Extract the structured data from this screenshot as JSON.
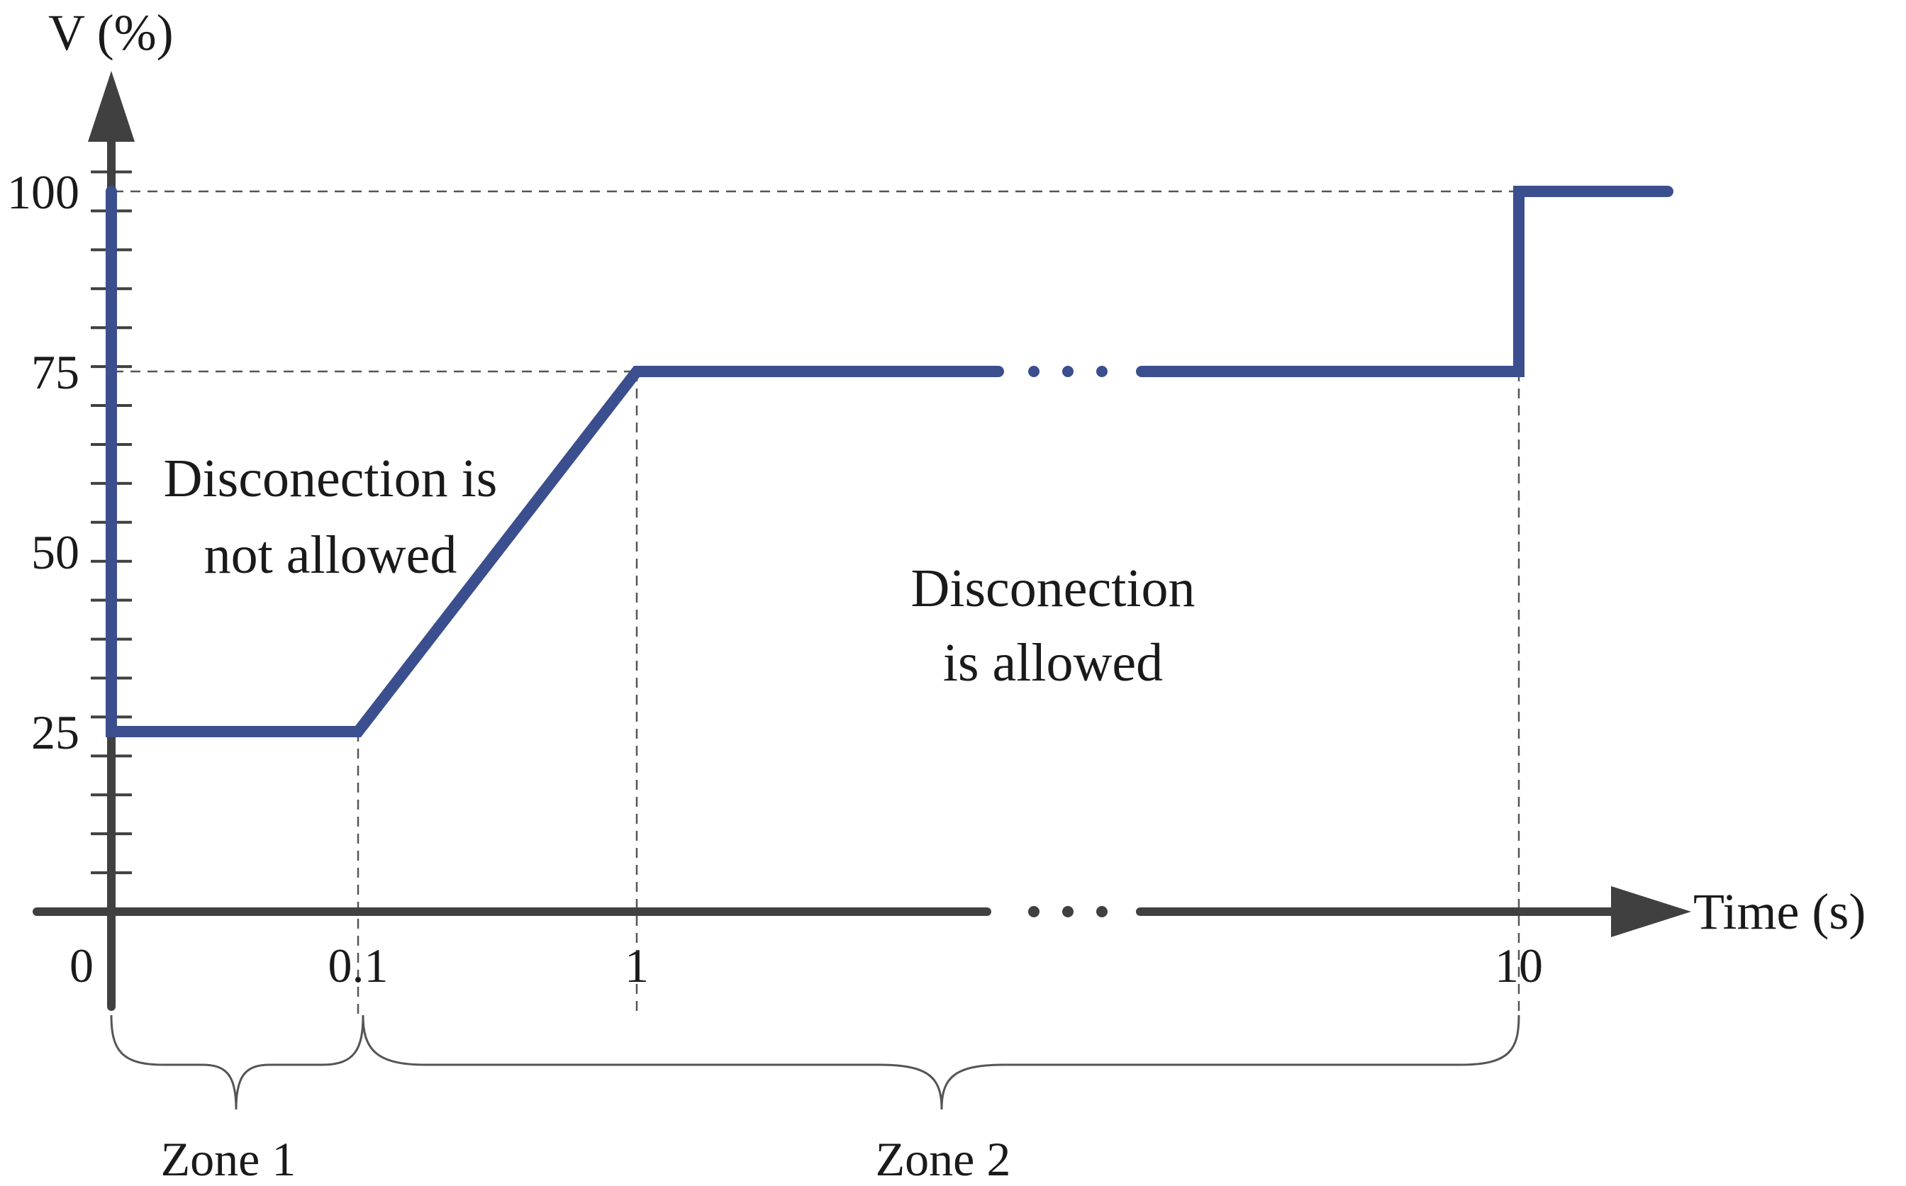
{
  "chart_data": {
    "type": "line",
    "title": "",
    "xlabel": "Time (s)",
    "ylabel": "V (%)",
    "x_ticks": [
      "0",
      "0.1",
      "1",
      "10"
    ],
    "y_ticks": [
      "25",
      "50",
      "75",
      "100"
    ],
    "ylim": [
      0,
      100
    ],
    "x_scale": "broken",
    "series": [
      {
        "points": [
          {
            "x": 0,
            "y": 100
          },
          {
            "x": 0,
            "y": 25
          },
          {
            "x": 0.1,
            "y": 25
          },
          {
            "x": 1,
            "y": 75
          },
          {
            "x": 10,
            "y": 75
          },
          {
            "x": 10,
            "y": 100
          }
        ],
        "color": "#3b4f8f",
        "extends_beyond_x": 10
      }
    ],
    "reference_lines": {
      "horizontal_y": [
        75,
        100
      ],
      "vertical_x": [
        0.1,
        1,
        10
      ]
    },
    "annotations": {
      "not_allowed": [
        "Disconection is",
        "not allowed"
      ],
      "allowed": [
        "Disconection",
        "is allowed"
      ]
    },
    "zones": [
      {
        "label": "Zone 1",
        "from": "0",
        "to": "0.1"
      },
      {
        "label": "Zone 2",
        "from": "0.1",
        "to": "10"
      }
    ],
    "grid": false,
    "colors": {
      "curve": "#3b4f8f",
      "axis": "#404040",
      "dash": "#555555"
    }
  }
}
